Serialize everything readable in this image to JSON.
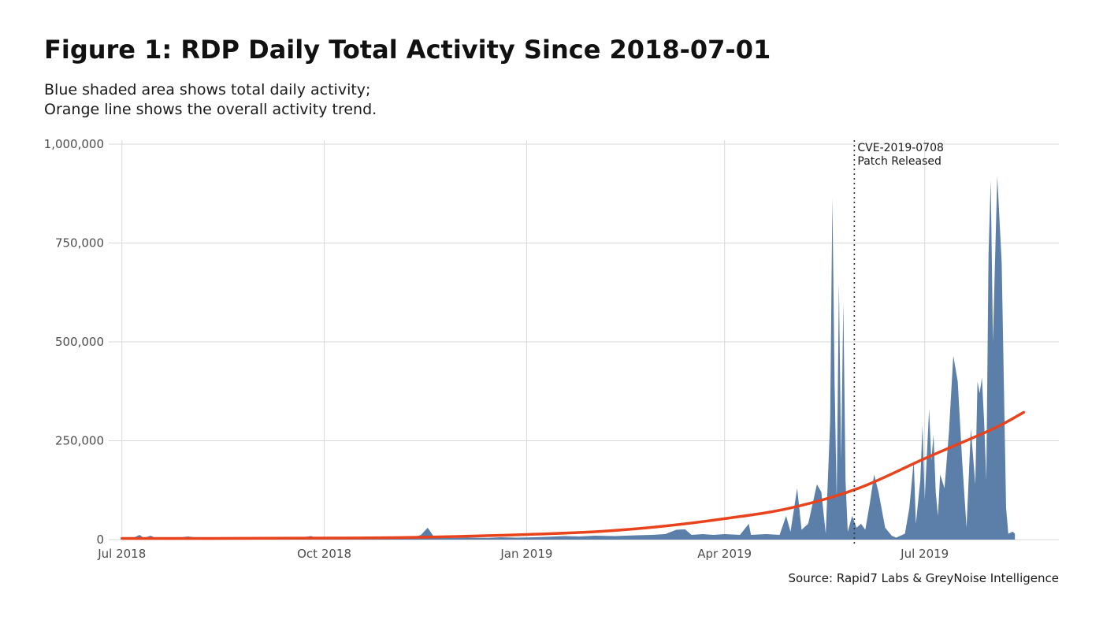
{
  "header": {
    "title": "Figure 1: RDP Daily Total Activity Since 2018-07-01",
    "subtitle_line1": "Blue shaded area shows total daily activity;",
    "subtitle_line2": "Orange line shows the overall activity trend."
  },
  "footer": {
    "source": "Source: Rapid7 Labs & GreyNoise Intelligence"
  },
  "chart_data": {
    "type": "area",
    "title": "Figure 1: RDP Daily Total Activity Since 2018-07-01",
    "xlabel": "",
    "ylabel": "",
    "x_range": [
      "2018-06-25",
      "2019-08-31"
    ],
    "ylim": [
      0,
      1000000
    ],
    "y_ticks": [
      {
        "value": 0,
        "label": "0"
      },
      {
        "value": 250000,
        "label": "250,000"
      },
      {
        "value": 500000,
        "label": "500,000"
      },
      {
        "value": 750000,
        "label": "750,000"
      },
      {
        "value": 1000000,
        "label": "1,000,000"
      }
    ],
    "x_ticks": [
      {
        "date": "2018-07-01",
        "label": "Jul 2018"
      },
      {
        "date": "2018-10-01",
        "label": "Oct 2018"
      },
      {
        "date": "2019-01-01",
        "label": "Jan 2019"
      },
      {
        "date": "2019-04-01",
        "label": "Apr 2019"
      },
      {
        "date": "2019-07-01",
        "label": "Jul 2019"
      }
    ],
    "grid": true,
    "colors": {
      "area": "#5b7fa8",
      "trend": "#e8431c",
      "grid": "#d9d9d9",
      "annotation": "#333333"
    },
    "series": [
      {
        "kind": "area",
        "points": [
          [
            "2018-07-01",
            3000
          ],
          [
            "2018-07-06",
            4000
          ],
          [
            "2018-07-09",
            12000
          ],
          [
            "2018-07-11",
            4000
          ],
          [
            "2018-07-14",
            10000
          ],
          [
            "2018-07-17",
            3000
          ],
          [
            "2018-07-25",
            4000
          ],
          [
            "2018-07-31",
            8000
          ],
          [
            "2018-08-06",
            4000
          ],
          [
            "2018-08-15",
            6000
          ],
          [
            "2018-08-25",
            4000
          ],
          [
            "2018-09-05",
            7000
          ],
          [
            "2018-09-15",
            4000
          ],
          [
            "2018-09-20",
            5000
          ],
          [
            "2018-09-25",
            9000
          ],
          [
            "2018-09-28",
            4000
          ],
          [
            "2018-10-05",
            3000
          ],
          [
            "2018-10-15",
            3500
          ],
          [
            "2018-10-25",
            4000
          ],
          [
            "2018-11-05",
            4500
          ],
          [
            "2018-11-10",
            5000
          ],
          [
            "2018-11-14",
            12000
          ],
          [
            "2018-11-17",
            30000
          ],
          [
            "2018-11-20",
            6000
          ],
          [
            "2018-11-26",
            4000
          ],
          [
            "2018-12-05",
            5000
          ],
          [
            "2018-12-15",
            4500
          ],
          [
            "2018-12-20",
            6000
          ],
          [
            "2018-12-28",
            5000
          ],
          [
            "2019-01-05",
            6000
          ],
          [
            "2019-01-10",
            7000
          ],
          [
            "2019-01-18",
            9000
          ],
          [
            "2019-01-25",
            8000
          ],
          [
            "2019-02-01",
            10000
          ],
          [
            "2019-02-10",
            9000
          ],
          [
            "2019-02-20",
            11000
          ],
          [
            "2019-02-27",
            12000
          ],
          [
            "2019-03-05",
            14000
          ],
          [
            "2019-03-10",
            25000
          ],
          [
            "2019-03-14",
            26000
          ],
          [
            "2019-03-17",
            12000
          ],
          [
            "2019-03-22",
            14000
          ],
          [
            "2019-03-27",
            12000
          ],
          [
            "2019-04-01",
            14000
          ],
          [
            "2019-04-08",
            12000
          ],
          [
            "2019-04-12",
            40000
          ],
          [
            "2019-04-13",
            12000
          ],
          [
            "2019-04-20",
            14000
          ],
          [
            "2019-04-26",
            12000
          ],
          [
            "2019-04-29",
            60000
          ],
          [
            "2019-05-01",
            20000
          ],
          [
            "2019-05-04",
            130000
          ],
          [
            "2019-05-06",
            25000
          ],
          [
            "2019-05-09",
            40000
          ],
          [
            "2019-05-13",
            140000
          ],
          [
            "2019-05-15",
            120000
          ],
          [
            "2019-05-17",
            15000
          ],
          [
            "2019-05-19",
            300000
          ],
          [
            "2019-05-20",
            865000
          ],
          [
            "2019-05-21",
            400000
          ],
          [
            "2019-05-22",
            100000
          ],
          [
            "2019-05-23",
            650000
          ],
          [
            "2019-05-24",
            200000
          ],
          [
            "2019-05-25",
            600000
          ],
          [
            "2019-05-26",
            150000
          ],
          [
            "2019-05-27",
            20000
          ],
          [
            "2019-05-29",
            60000
          ],
          [
            "2019-05-31",
            30000
          ],
          [
            "2019-06-02",
            40000
          ],
          [
            "2019-06-04",
            25000
          ],
          [
            "2019-06-06",
            90000
          ],
          [
            "2019-06-08",
            165000
          ],
          [
            "2019-06-10",
            120000
          ],
          [
            "2019-06-13",
            30000
          ],
          [
            "2019-06-16",
            10000
          ],
          [
            "2019-06-18",
            5000
          ],
          [
            "2019-06-22",
            15000
          ],
          [
            "2019-06-24",
            80000
          ],
          [
            "2019-06-26",
            200000
          ],
          [
            "2019-06-27",
            40000
          ],
          [
            "2019-06-29",
            150000
          ],
          [
            "2019-06-30",
            290000
          ],
          [
            "2019-07-01",
            100000
          ],
          [
            "2019-07-03",
            330000
          ],
          [
            "2019-07-04",
            200000
          ],
          [
            "2019-07-05",
            265000
          ],
          [
            "2019-07-06",
            120000
          ],
          [
            "2019-07-07",
            60000
          ],
          [
            "2019-07-08",
            165000
          ],
          [
            "2019-07-10",
            130000
          ],
          [
            "2019-07-12",
            270000
          ],
          [
            "2019-07-14",
            465000
          ],
          [
            "2019-07-16",
            400000
          ],
          [
            "2019-07-18",
            200000
          ],
          [
            "2019-07-20",
            30000
          ],
          [
            "2019-07-22",
            280000
          ],
          [
            "2019-07-24",
            140000
          ],
          [
            "2019-07-25",
            400000
          ],
          [
            "2019-07-26",
            370000
          ],
          [
            "2019-07-27",
            410000
          ],
          [
            "2019-07-28",
            300000
          ],
          [
            "2019-07-29",
            150000
          ],
          [
            "2019-07-30",
            720000
          ],
          [
            "2019-07-31",
            910000
          ],
          [
            "2019-08-01",
            500000
          ],
          [
            "2019-08-03",
            920000
          ],
          [
            "2019-08-05",
            700000
          ],
          [
            "2019-08-07",
            80000
          ],
          [
            "2019-08-08",
            15000
          ],
          [
            "2019-08-10",
            20000
          ],
          [
            "2019-08-11",
            15000
          ]
        ]
      },
      {
        "kind": "line",
        "points": [
          [
            "2018-07-01",
            3000
          ],
          [
            "2018-08-01",
            3000
          ],
          [
            "2018-09-01",
            3500
          ],
          [
            "2018-10-01",
            4000
          ],
          [
            "2018-11-01",
            5000
          ],
          [
            "2018-12-01",
            8000
          ],
          [
            "2019-01-01",
            13000
          ],
          [
            "2019-02-01",
            20000
          ],
          [
            "2019-03-01",
            32000
          ],
          [
            "2019-04-01",
            53000
          ],
          [
            "2019-05-01",
            80000
          ],
          [
            "2019-06-01",
            130000
          ],
          [
            "2019-07-01",
            205000
          ],
          [
            "2019-08-01",
            280000
          ],
          [
            "2019-08-15",
            322000
          ]
        ]
      }
    ],
    "annotation": {
      "date": "2019-05-30",
      "line1": "CVE-2019-0708",
      "line2": "Patch Released"
    }
  }
}
